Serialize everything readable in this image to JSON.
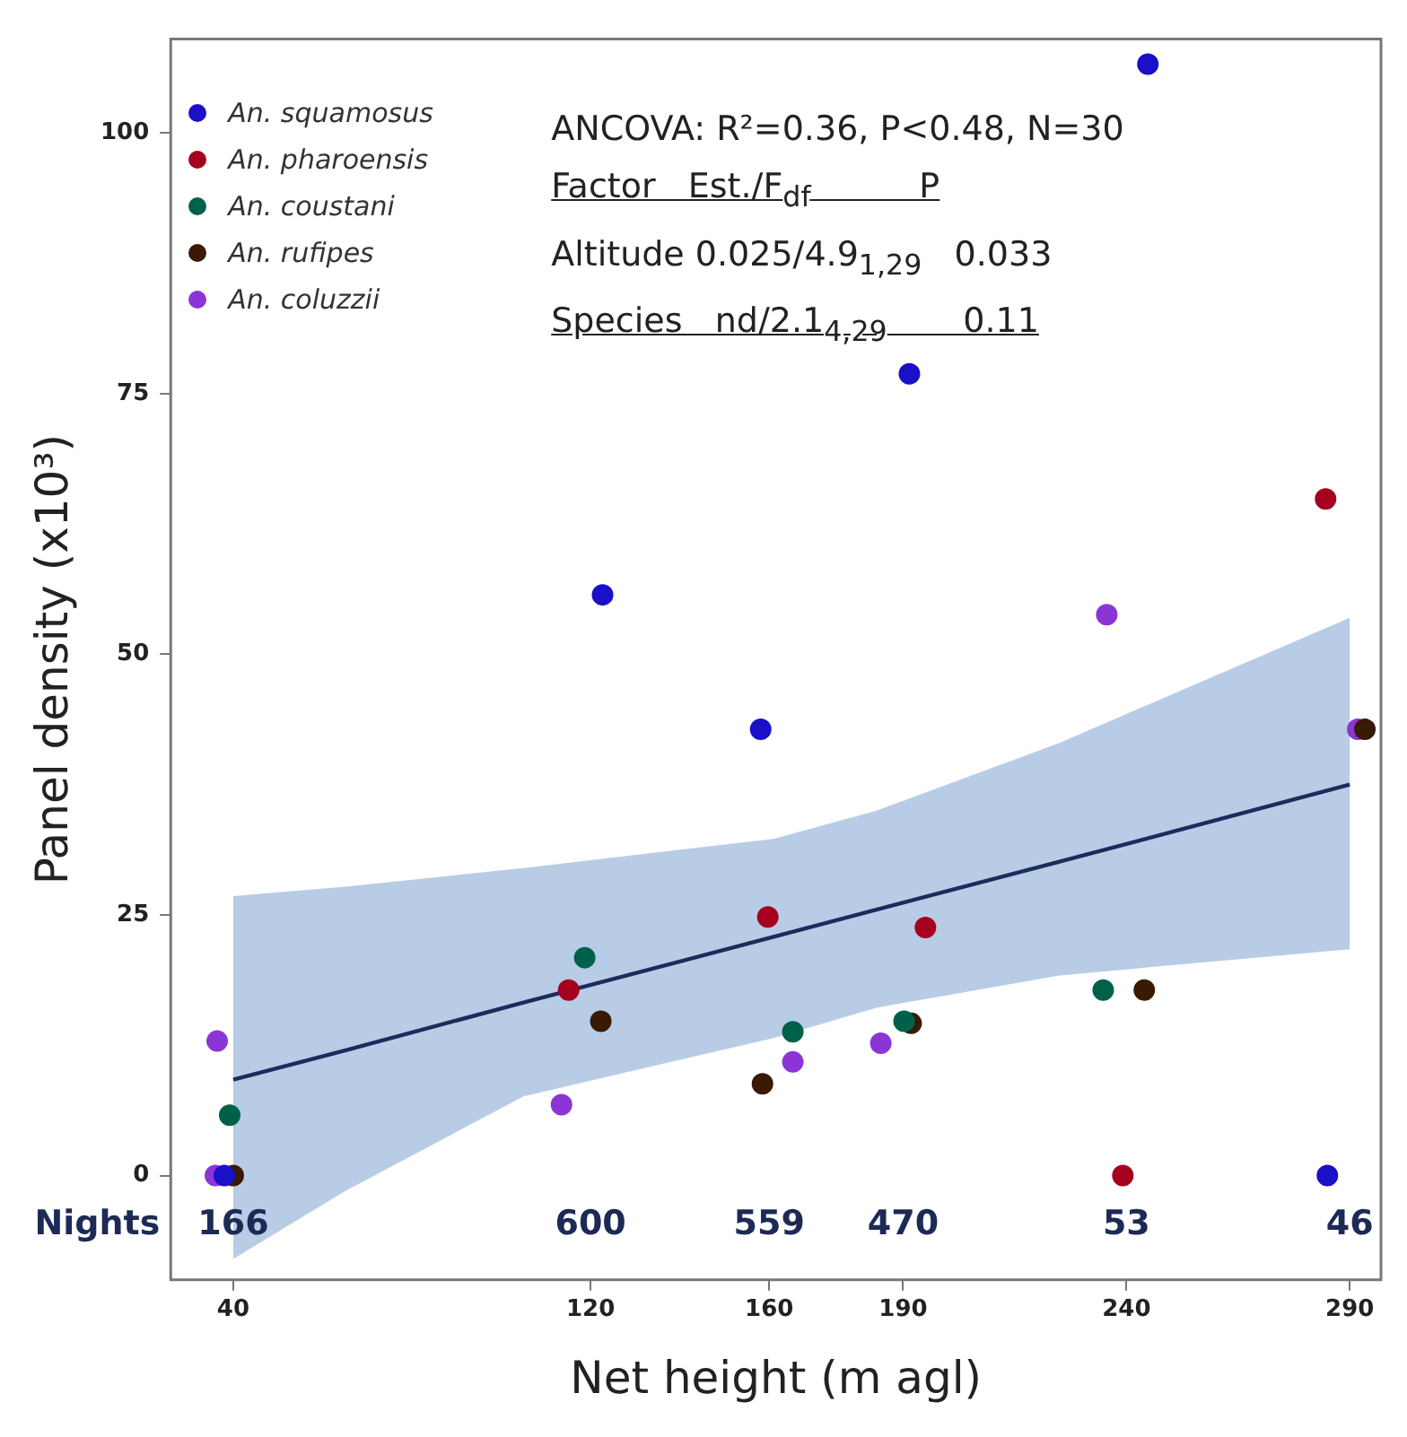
{
  "chart_data": {
    "type": "scatter",
    "xlabel": "Net height (m agl)",
    "ylabel": "Panel density (x10³)",
    "xlim": [
      26,
      297
    ],
    "xticks": [
      40,
      120,
      160,
      190,
      240,
      290
    ],
    "ylim": [
      -10,
      109
    ],
    "yticks": [
      0,
      25,
      50,
      75,
      100
    ],
    "grid": false,
    "legend": "top left",
    "marker": "circle",
    "series": [
      {
        "name": "An. squamosus",
        "color": "#1a10c8",
        "x": [
          244.8,
          191.4,
          122.7,
          158.1,
          285,
          38
        ],
        "values": [
          106.6,
          76.9,
          55.7,
          42.8,
          0,
          0
        ]
      },
      {
        "name": "An. pharoensis",
        "color": "#a5001e",
        "x": [
          115.1,
          159.7,
          195,
          239.2,
          284.6
        ],
        "values": [
          17.8,
          24.8,
          23.8,
          0,
          64.9
        ]
      },
      {
        "name": "An. coustani",
        "color": "#00614a",
        "x": [
          39.2,
          118.7,
          165.3,
          190.2,
          234.8
        ],
        "values": [
          5.8,
          20.9,
          13.8,
          14.8,
          17.8
        ]
      },
      {
        "name": "An. rufipes",
        "color": "#3a1a05",
        "x": [
          122.3,
          158.5,
          191.8,
          244,
          293.4,
          40
        ],
        "values": [
          14.8,
          8.8,
          14.6,
          17.8,
          42.8,
          0
        ]
      },
      {
        "name": "An. coluzzii",
        "color": "#8c35d6",
        "x": [
          36.4,
          113.5,
          165.3,
          185,
          235.6,
          291.8,
          36
        ],
        "values": [
          12.9,
          6.8,
          10.9,
          12.7,
          53.8,
          42.8,
          0
        ]
      },
      {
        "type": "line",
        "color": "#1a2b5e",
        "marker": "none",
        "x": [
          40,
          65,
          105,
          161,
          184,
          225,
          290
        ],
        "values": [
          9.2,
          12,
          16.6,
          22.9,
          25.5,
          30.1,
          37.5
        ],
        "lower": [
          -8,
          -1.5,
          7.6,
          13.2,
          16.1,
          19.2,
          21.7
        ],
        "upper": [
          26.8,
          27.7,
          29.5,
          32.3,
          35,
          41.5,
          53.5
        ]
      }
    ],
    "annotations": [
      "ANCOVA: R²=0.36, P<0.48, N=30",
      "Factor   Est./F$_{df}$          P",
      "Altitude 0.025/4.9$_{1,29}$   0.033",
      "Species   nd/2.1$_{4,29}$       0.11",
      "Nights",
      "166",
      "600",
      "559",
      "470",
      "53",
      "46"
    ]
  }
}
